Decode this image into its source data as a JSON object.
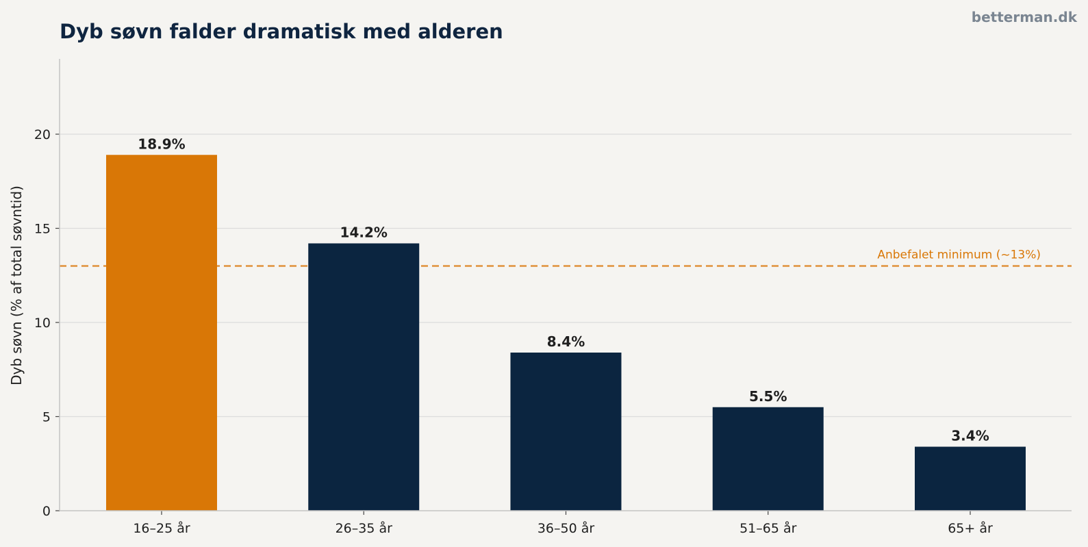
{
  "brand": "betterman.dk",
  "colors": {
    "background": "#f5f4f1",
    "highlight": "#d97706",
    "bar": "#0b2540",
    "reference": "#e0913a",
    "grid": "#dcdcdc",
    "axis": "#c4c4c4"
  },
  "chart_data": {
    "type": "bar",
    "title": "Dyb søvn falder dramatisk med alderen",
    "xlabel": "",
    "ylabel": "Dyb søvn (% af total søvntid)",
    "categories": [
      "16–25 år",
      "26–35 år",
      "36–50 år",
      "51–65 år",
      "65+ år"
    ],
    "values": [
      18.9,
      14.2,
      8.4,
      5.5,
      3.4
    ],
    "value_labels": [
      "18.9%",
      "14.2%",
      "8.4%",
      "5.5%",
      "3.4%"
    ],
    "highlight_index": 0,
    "ylim": [
      0,
      24
    ],
    "yticks": [
      0,
      5,
      10,
      15,
      20
    ],
    "grid": true,
    "legend": "none",
    "reference_line": {
      "value": 13,
      "label": "Anbefalet minimum (~13%)",
      "style": "dashed"
    }
  }
}
